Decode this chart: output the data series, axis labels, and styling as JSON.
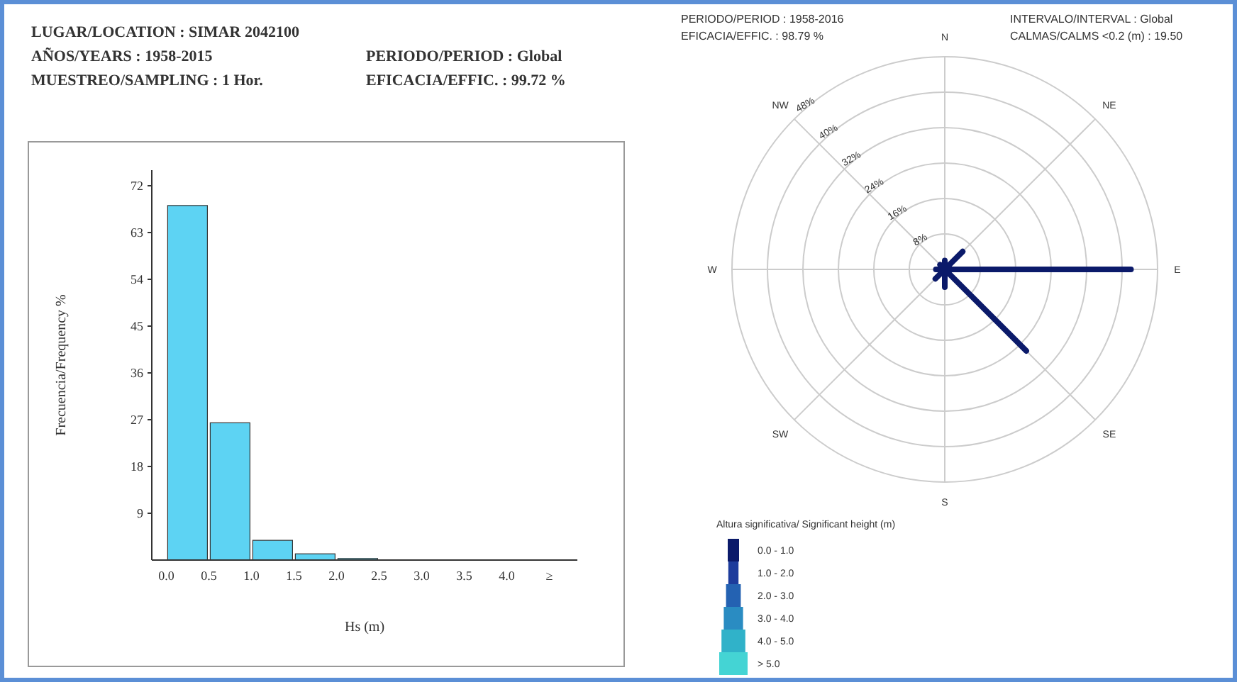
{
  "chart_data": [
    {
      "type": "other",
      "annotations": [
        "LUGAR/LOCATION : SIMAR 2042100",
        "AÑOS/YEARS : 1958-2015",
        "PERIODO/PERIOD : Global",
        "MUESTREO/SAMPLING : 1 Hor.",
        "EFICACIA/EFFIC. : 99.72 %"
      ]
    },
    {
      "type": "histogram",
      "xlabel": "Hs (m)",
      "ylabel": "Frecuencia/Frequency %",
      "bins": [
        0,
        0.5,
        1,
        1.5,
        2,
        2.5,
        3,
        3.5,
        4,
        4.5
      ],
      "values": [
        68.2,
        26.4,
        3.8,
        1.2,
        0.3,
        null,
        0,
        0,
        0
      ],
      "color": "#5dd3f3",
      "xlim": [
        -0.17,
        4.83
      ],
      "ylim": [
        0,
        75
      ],
      "xticks": [
        {
          "value": 0,
          "label": "0.0"
        },
        0.5,
        {
          "value": 1,
          "label": "1.0"
        },
        1.5,
        {
          "value": 2,
          "label": "2.0"
        },
        2.5,
        {
          "value": 3,
          "label": "3.0"
        },
        3.5,
        {
          "value": 4,
          "label": "4.0"
        },
        {
          "value": 4.5,
          "label": "≥"
        }
      ],
      "yticks": [
        9,
        18,
        27,
        36,
        45,
        54,
        63,
        72
      ],
      "grid": false
    },
    {
      "type": "radar",
      "categories": [
        "N",
        "NE",
        "E",
        "SE",
        "S",
        "SW",
        "W",
        "NW"
      ],
      "legend_title": "Altura significativa/ Significant height (m)",
      "legend": "bottom left",
      "annotations": [
        "PERIODO/PERIOD : 1958-2016",
        "EFICACIA/EFFIC. : 98.79 %",
        "INTERVALO/INTERVAL : Global",
        "CALMAS/CALMS <0.2 (m) : 19.50",
        "1.0 - 2.0",
        "2.0 - 3.0",
        "3.0 - 4.0",
        "4.0 - 5.0",
        "> 5.0"
      ],
      "ylim": [
        0,
        48
      ],
      "yticks": [
        {
          "value": 8,
          "label": "8%"
        },
        {
          "value": 16,
          "label": "16%"
        },
        {
          "value": 24,
          "label": "24%"
        },
        {
          "value": 32,
          "label": "32%"
        },
        {
          "value": 40,
          "label": "40%"
        },
        {
          "value": 48,
          "label": "48%"
        }
      ],
      "grid": true,
      "series": [
        {
          "name": "0.0 - 1.0",
          "color": "#0b1a6a",
          "values": [
            2,
            5.7,
            42,
            26,
            4,
            3,
            2,
            1.5
          ]
        }
      ]
    }
  ]
}
